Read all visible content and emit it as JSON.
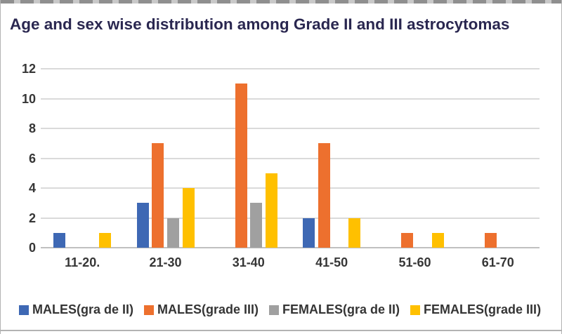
{
  "chart_data": {
    "type": "bar",
    "title": "Age and sex wise distribution among Grade II and III astrocytomas",
    "title_color": "#2a2750",
    "categories": [
      "11-20.",
      "21-30",
      "31-40",
      "41-50",
      "51-60",
      "61-70"
    ],
    "series": [
      {
        "name": "MALES(gra de II)",
        "color": "#3e68b4",
        "values": [
          1,
          3,
          0,
          2,
          0,
          0
        ]
      },
      {
        "name": "MALES(grade III)",
        "color": "#ed702e",
        "values": [
          0,
          7,
          11,
          7,
          1,
          1
        ]
      },
      {
        "name": "FEMALES(gra de II)",
        "color": "#a0a0a0",
        "values": [
          0,
          2,
          3,
          0,
          0,
          0
        ]
      },
      {
        "name": "FEMALES(grade III)",
        "color": "#ffc000",
        "values": [
          1,
          4,
          5,
          2,
          1,
          0
        ]
      }
    ],
    "xlabel": "",
    "ylabel": "",
    "ylim": [
      0,
      12
    ],
    "yticks": [
      0,
      2,
      4,
      6,
      8,
      10,
      12
    ],
    "grid": "horizontal",
    "gridline_color": "#dadada",
    "baseline_color": "#c0c0c0",
    "legend_position": "bottom"
  }
}
